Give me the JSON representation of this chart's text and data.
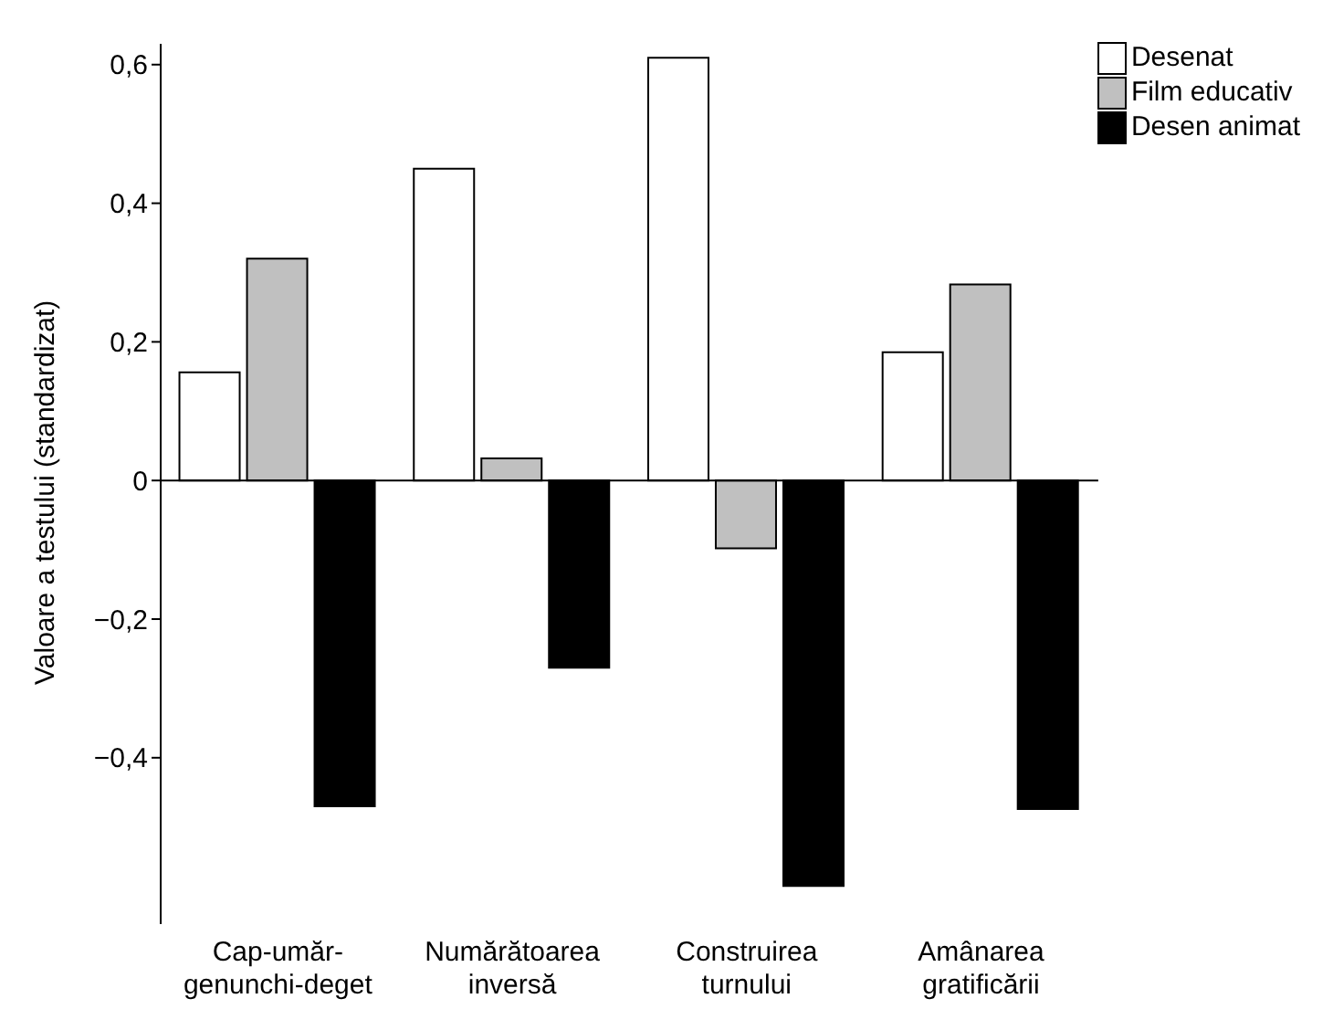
{
  "chart_data": {
    "type": "bar",
    "ylabel": "Valoare a testului (standardizat)",
    "categories": [
      "Cap-umăr-genunchi-deget",
      "Numărătoarea inversă",
      "Construirea turnului",
      "Amânarea gratificării"
    ],
    "series": [
      {
        "name": "Desenat",
        "color": "#ffffff",
        "values": [
          0.156,
          0.45,
          0.61,
          0.185
        ]
      },
      {
        "name": "Film educativ",
        "color": "#c0c0c0",
        "values": [
          0.32,
          0.032,
          -0.098,
          0.283
        ]
      },
      {
        "name": "Desen animat",
        "color": "#000000",
        "values": [
          -0.47,
          -0.27,
          -0.585,
          -0.474
        ]
      }
    ],
    "ylim": [
      -0.64,
      0.63
    ],
    "yticks": [
      {
        "value": -0.4,
        "label": "−0,4"
      },
      {
        "value": -0.2,
        "label": "−0,2"
      },
      0,
      {
        "value": 0.2,
        "label": "0,2"
      },
      {
        "value": 0.4,
        "label": "0,4"
      },
      {
        "value": 0.6,
        "label": "0,6"
      }
    ],
    "ref_lines": [
      {
        "axis": "y",
        "value": 0,
        "color": "#000000"
      }
    ],
    "grid": false,
    "legend": "top right"
  }
}
